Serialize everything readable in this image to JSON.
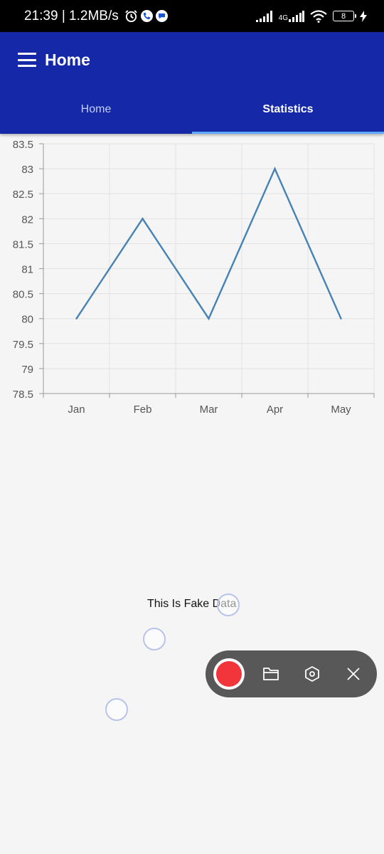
{
  "status_bar": {
    "time_speed": "21:39 | 1.2MB/s",
    "network": "4G",
    "battery": "8",
    "icons": [
      "alarm-icon",
      "phone-icon",
      "message-icon",
      "signal-icon",
      "signal-4g-icon",
      "wifi-icon",
      "battery-icon",
      "charging-icon"
    ]
  },
  "app_bar": {
    "title": "Home",
    "menu_icon": "hamburger-menu-icon",
    "tabs": [
      {
        "label": "Home",
        "active": false
      },
      {
        "label": "Statistics",
        "active": true
      }
    ],
    "color": "#1428a8",
    "indicator_color": "#5fa8ff"
  },
  "chart_data": {
    "type": "line",
    "categories": [
      "Jan",
      "Feb",
      "Mar",
      "Apr",
      "May"
    ],
    "series": [
      {
        "values": [
          80,
          82,
          80,
          83,
          80
        ],
        "color": "#4682b4"
      }
    ],
    "ylim": [
      78.5,
      83.5
    ],
    "yticks": [
      "78.5",
      "79",
      "79.5",
      "80",
      "80.5",
      "81",
      "81.5",
      "82",
      "82.5",
      "83",
      "83.5"
    ],
    "grid": true,
    "title": "",
    "xlabel": "",
    "ylabel": ""
  },
  "body_text": "This Is Fake Data",
  "recorder": {
    "record_color": "#f2353b",
    "tools": [
      "record-icon",
      "folder-icon",
      "settings-hexagon-icon",
      "close-icon"
    ]
  }
}
